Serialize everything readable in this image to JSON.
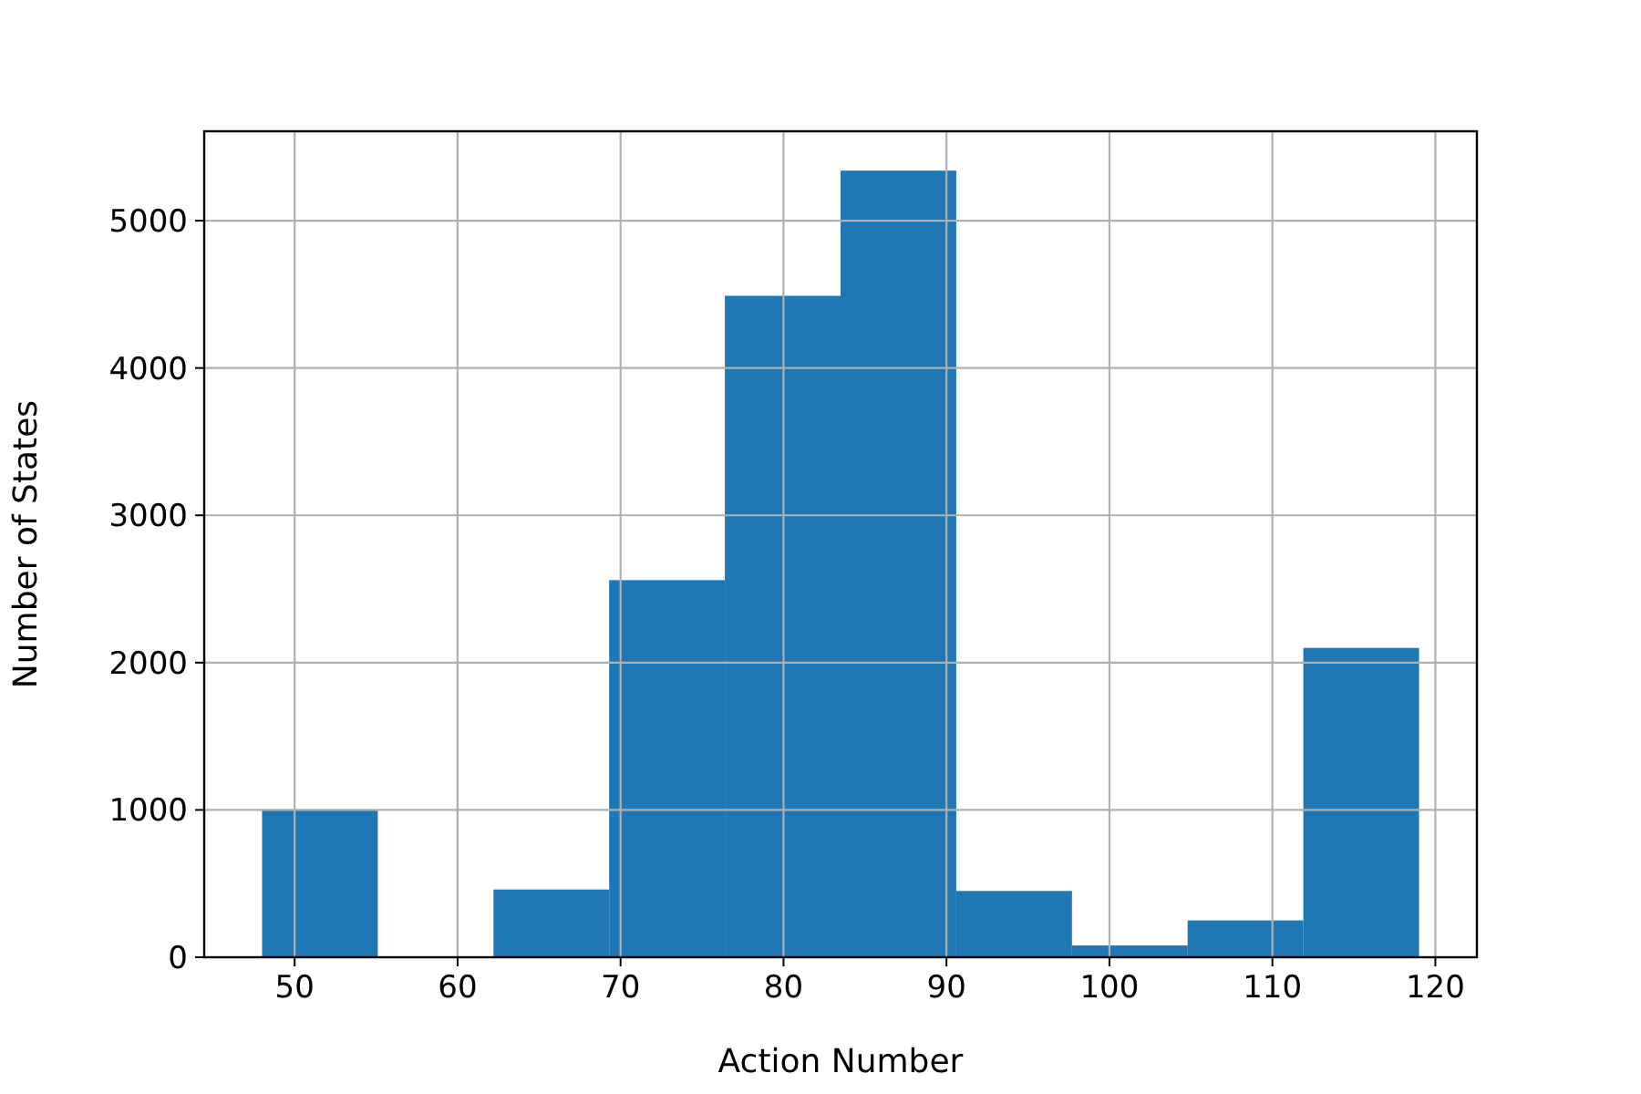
{
  "chart_data": {
    "type": "histogram",
    "xlabel": "Action Number",
    "ylabel": "Number of States",
    "bins": [
      48,
      55.1,
      62.2,
      69.3,
      76.4,
      83.5,
      90.6,
      97.7,
      104.8,
      111.9,
      119
    ],
    "values": [
      1000,
      0,
      460,
      2560,
      4490,
      5340,
      450,
      80,
      250,
      2100
    ],
    "color": "#1f77b4",
    "xlim": [
      44.45,
      122.55
    ],
    "xticks": [
      50,
      60,
      70,
      80,
      90,
      100,
      110,
      120
    ],
    "ylim": [
      0,
      5607
    ],
    "yticks": [
      0,
      1000,
      2000,
      3000,
      4000,
      5000
    ],
    "grid": true
  }
}
